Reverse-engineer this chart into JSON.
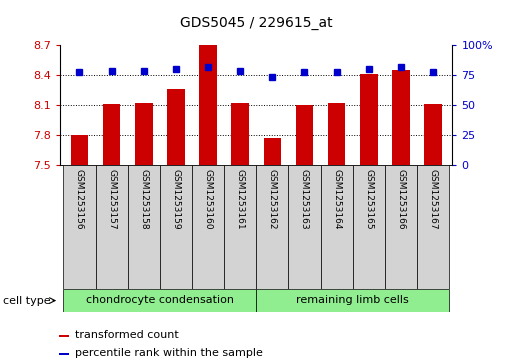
{
  "title": "GDS5045 / 229615_at",
  "samples": [
    "GSM1253156",
    "GSM1253157",
    "GSM1253158",
    "GSM1253159",
    "GSM1253160",
    "GSM1253161",
    "GSM1253162",
    "GSM1253163",
    "GSM1253164",
    "GSM1253165",
    "GSM1253166",
    "GSM1253167"
  ],
  "transformed_counts": [
    7.8,
    8.11,
    8.12,
    8.26,
    8.7,
    8.12,
    7.77,
    8.1,
    8.12,
    8.41,
    8.45,
    8.11
  ],
  "percentile_ranks": [
    78,
    79,
    79,
    80,
    82,
    79,
    74,
    78,
    78,
    80,
    82,
    78
  ],
  "ylim_left": [
    7.5,
    8.7
  ],
  "ylim_right": [
    0,
    100
  ],
  "yticks_left": [
    7.5,
    7.8,
    8.1,
    8.4,
    8.7
  ],
  "yticks_right": [
    0,
    25,
    50,
    75,
    100
  ],
  "ytick_labels_left": [
    "7.5",
    "7.8",
    "8.1",
    "8.4",
    "8.7"
  ],
  "ytick_labels_right": [
    "0",
    "25",
    "50",
    "75",
    "100%"
  ],
  "hlines": [
    7.8,
    8.1,
    8.4
  ],
  "bar_color": "#cc0000",
  "dot_color": "#0000cc",
  "bar_width": 0.55,
  "cell_type_label": "cell type",
  "cell_groups": [
    {
      "label": "chondrocyte condensation",
      "start": 0,
      "end": 5
    },
    {
      "label": "remaining limb cells",
      "start": 6,
      "end": 11
    }
  ],
  "legend_items": [
    {
      "color": "#cc0000",
      "label": "transformed count"
    },
    {
      "color": "#0000cc",
      "label": "percentile rank within the sample"
    }
  ],
  "sample_bg": "#d3d3d3",
  "cell_type_bg": "#90EE90",
  "plot_bg": "#ffffff",
  "title_fontsize": 10,
  "axis_fontsize": 8,
  "sample_fontsize": 6.5,
  "legend_fontsize": 8,
  "cell_type_fontsize": 8
}
